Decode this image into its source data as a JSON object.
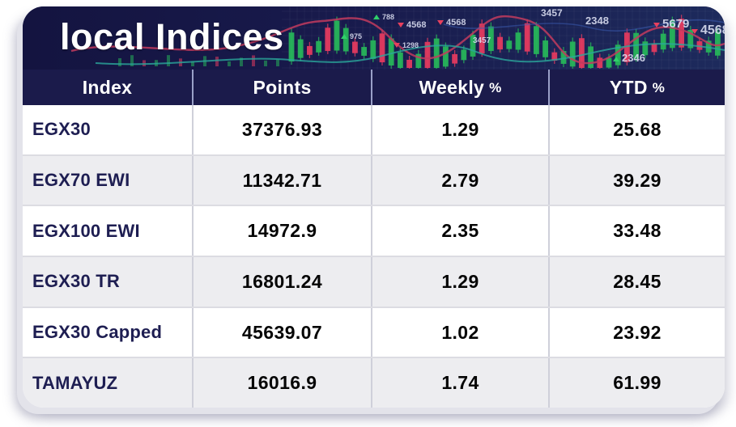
{
  "title": "local Indices",
  "banner": {
    "chart_labels": [
      {
        "text": "975",
        "marker": "up"
      },
      {
        "text": "788",
        "marker": "up"
      },
      {
        "text": "4568",
        "marker": "down"
      },
      {
        "text": "4568",
        "marker": "down"
      },
      {
        "text": "1298",
        "marker": "down"
      },
      {
        "text": "3457",
        "marker": "none"
      },
      {
        "text": "3457",
        "marker": "none"
      },
      {
        "text": "2348",
        "marker": "none"
      },
      {
        "text": "5679",
        "marker": "down"
      },
      {
        "text": "4568",
        "marker": "down"
      },
      {
        "text": "2346",
        "marker": "up"
      }
    ]
  },
  "table": {
    "columns": [
      "Index",
      "Points",
      "Weekly %",
      "YTD %"
    ],
    "rows": [
      {
        "index": "EGX30",
        "points": "37376.93",
        "weekly": "1.29",
        "ytd": "25.68"
      },
      {
        "index": "EGX70 EWI",
        "points": "11342.71",
        "weekly": "2.79",
        "ytd": "39.29"
      },
      {
        "index": "EGX100 EWI",
        "points": "14972.9",
        "weekly": "2.35",
        "ytd": "33.48"
      },
      {
        "index": "EGX30 TR",
        "points": "16801.24",
        "weekly": "1.29",
        "ytd": "28.45"
      },
      {
        "index": "EGX30 Capped",
        "points": "45639.07",
        "weekly": "1.02",
        "ytd": "23.92"
      },
      {
        "index": "TAMAYUZ",
        "points": "16016.9",
        "weekly": "1.74",
        "ytd": "61.99"
      }
    ]
  },
  "colors": {
    "navy": "#1b1b4b",
    "banner_bg": "#15153f",
    "row_alt": "#ededf0",
    "index_text": "#1e1e52",
    "candle_green": "#27b35a",
    "candle_red": "#e03a5f",
    "curve_red": "#c23b5e",
    "curve_teal": "#2aa79b",
    "curve_blue": "#3a5bb0"
  }
}
